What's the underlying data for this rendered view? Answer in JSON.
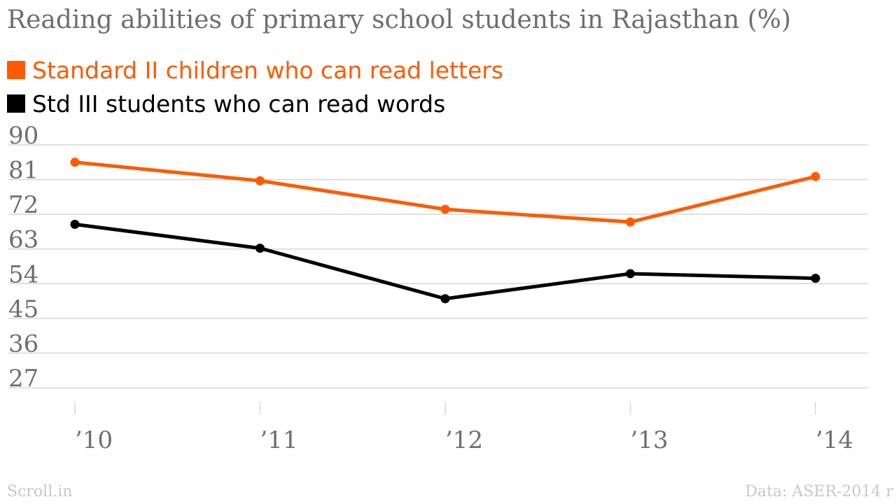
{
  "title": "Reading abilities of primary school students in Rajasthan (%)",
  "legend": [
    {
      "label": "Standard II children who can read letters",
      "color": "#ff5a00"
    },
    {
      "label": "Std III students who can read words",
      "color": "#000000"
    }
  ],
  "chart_data": {
    "type": "line",
    "title": "Reading abilities of primary school students in Rajasthan (%)",
    "xlabel": "",
    "ylabel": "",
    "categories": [
      "’10",
      "’11",
      "’12",
      "’13",
      "’14"
    ],
    "series": [
      {
        "name": "Standard II children who can read letters",
        "color": "#ff5a00",
        "values": [
          85.5,
          80.7,
          73.3,
          70.0,
          81.8
        ]
      },
      {
        "name": "Std III students who can read words",
        "color": "#000000",
        "values": [
          69.4,
          63.2,
          50.1,
          56.6,
          55.4
        ]
      }
    ],
    "ylim": [
      27,
      90
    ],
    "yticks": [
      "90",
      "81",
      "72",
      "63",
      "54",
      "45",
      "36",
      "27"
    ],
    "grid": true,
    "legend_position": "top-left",
    "colors": {
      "grid": "#d6d6d6",
      "axis_text": "#6e6e6e",
      "tick_mark": "#d6d6d6"
    }
  },
  "footer": {
    "source_left": "Scroll.in",
    "source_right": "Data: ASER-2014 r"
  }
}
